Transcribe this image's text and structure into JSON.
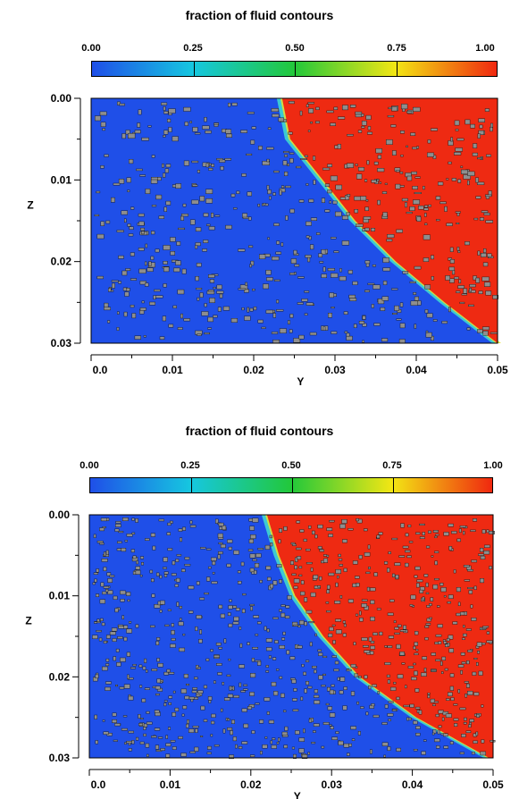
{
  "panels": [
    {
      "title": "fraction of fluid contours"
    },
    {
      "title": "fraction of fluid contours"
    }
  ],
  "colorbar": {
    "ticks": [
      "0.00",
      "0.25",
      "0.50",
      "0.75",
      "1.00"
    ],
    "colormap": [
      "#1f4fe8",
      "#16c7e0",
      "#22c83a",
      "#f2e614",
      "#f0280f"
    ]
  },
  "colors": {
    "fluid_empty": "#1f4fe8",
    "fluid_full": "#ee2a12",
    "solid_grain": "#8e8e8e"
  },
  "chart_data": [
    {
      "type": "heatmap",
      "title": "fraction of fluid contours",
      "xlabel": "Y",
      "ylabel": "Z",
      "xlim": [
        0.0,
        0.05
      ],
      "ylim": [
        0.03,
        0.0
      ],
      "xticks": [
        "0.0",
        "0.01",
        "0.02",
        "0.03",
        "0.04",
        "0.05"
      ],
      "yticks": [
        "0.00",
        "0.01",
        "0.02",
        "0.03"
      ],
      "value_range": [
        0.0,
        1.0
      ],
      "front": {
        "z": [
          0.0,
          0.005,
          0.01,
          0.015,
          0.02,
          0.025,
          0.03
        ],
        "y": [
          0.0235,
          0.0245,
          0.0285,
          0.0325,
          0.0375,
          0.0435,
          0.05
        ]
      }
    },
    {
      "type": "heatmap",
      "title": "fraction of fluid contours",
      "xlabel": "Y",
      "ylabel": "Z",
      "xlim": [
        0.0,
        0.05
      ],
      "ylim": [
        0.03,
        0.0
      ],
      "xticks": [
        "0.0",
        "0.01",
        "0.02",
        "0.03",
        "0.04",
        "0.05"
      ],
      "yticks": [
        "0.00",
        "0.01",
        "0.02",
        "0.03"
      ],
      "value_range": [
        0.0,
        1.0
      ],
      "front": {
        "z": [
          0.0,
          0.005,
          0.01,
          0.015,
          0.02,
          0.025,
          0.03
        ],
        "y": [
          0.022,
          0.0235,
          0.0255,
          0.029,
          0.0335,
          0.0405,
          0.0495
        ]
      }
    }
  ]
}
